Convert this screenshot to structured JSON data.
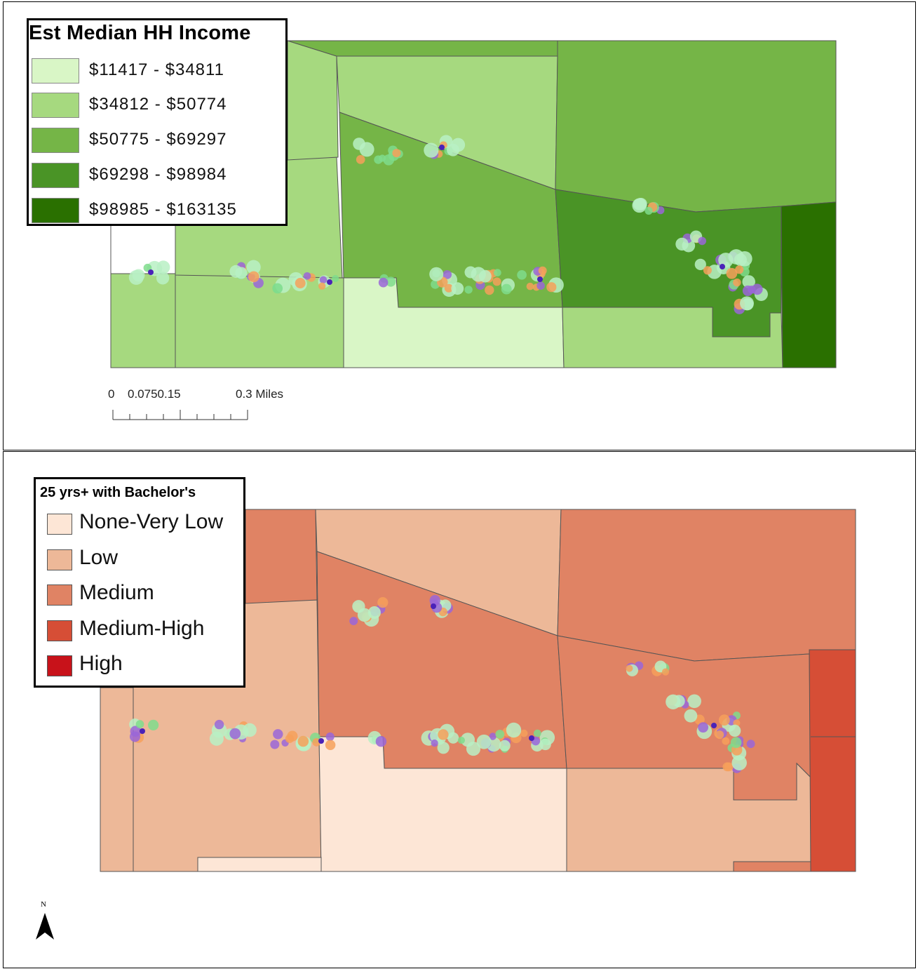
{
  "income_map": {
    "legend_title": "Est Median HH Income",
    "classes": [
      {
        "label": "$11417 - $34811",
        "color": "#d9f6c6"
      },
      {
        "label": "$34812 - $50774",
        "color": "#a6d97f"
      },
      {
        "label": "$50775 - $69297",
        "color": "#75b547"
      },
      {
        "label": "$69298 - $98984",
        "color": "#4a9426"
      },
      {
        "label": "$98985 - $163135",
        "color": "#2a7000"
      }
    ],
    "scale_bar": {
      "labels": [
        "0",
        "0.0750.15",
        "0.3 Miles"
      ]
    }
  },
  "education_map": {
    "legend_title": "25 yrs+ with Bachelor's",
    "classes": [
      {
        "label": "None-Very Low",
        "color": "#fde6d6"
      },
      {
        "label": "Low",
        "color": "#edb898"
      },
      {
        "label": "Medium",
        "color": "#e08364"
      },
      {
        "label": "Medium-High",
        "color": "#d64e36"
      },
      {
        "label": "High",
        "color": "#c8121a"
      }
    ]
  },
  "north_arrow": {
    "label": "N"
  },
  "point_colors": {
    "light_green": "#b8f0c4",
    "green": "#7fdc8c",
    "orange": "#f6a05a",
    "purple": "#9a66d8",
    "dark_purple": "#4a22b8"
  }
}
